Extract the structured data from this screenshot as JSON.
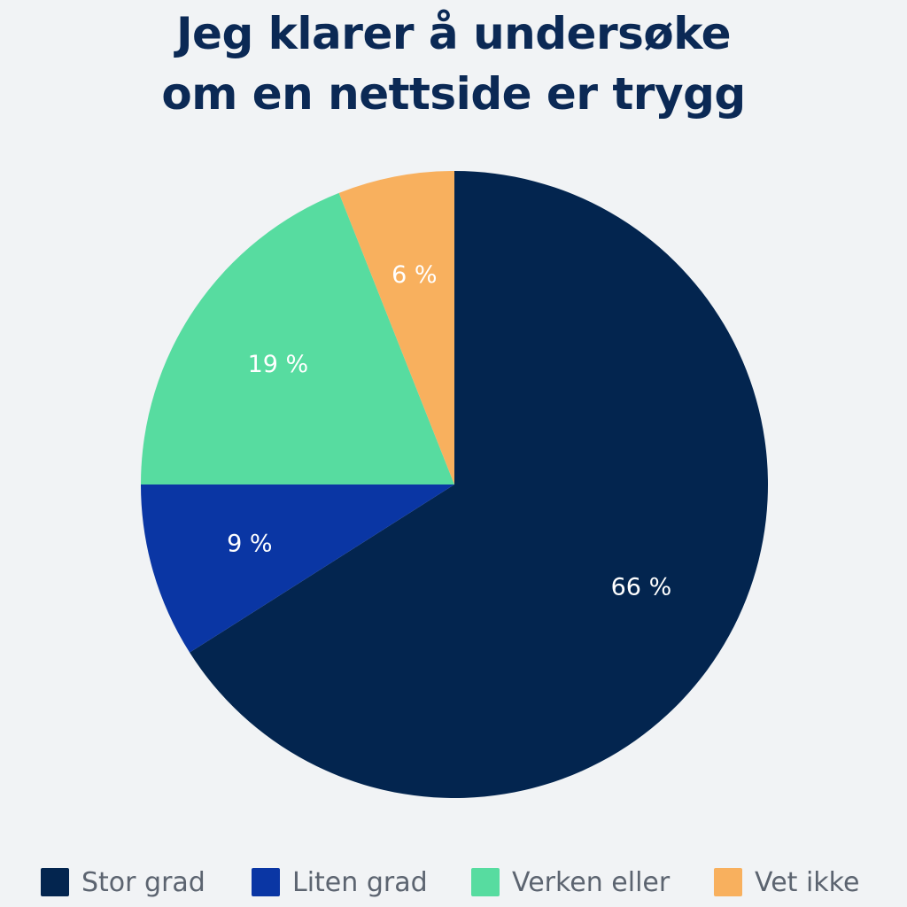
{
  "chart_data": {
    "type": "pie",
    "title_lines": [
      "Jeg klarer å undersøke",
      "om en nettside er trygg"
    ],
    "slices": [
      {
        "name": "Stor grad",
        "value": 66,
        "label": "66 %",
        "color": "#03254f"
      },
      {
        "name": "Liten grad",
        "value": 9,
        "label": "9 %",
        "color": "#0a36a4"
      },
      {
        "name": "Verken eller",
        "value": 19,
        "label": "19 %",
        "color": "#57dca0"
      },
      {
        "name": "Vet ikke",
        "value": 6,
        "label": "6 %",
        "color": "#f8b05e"
      }
    ],
    "direction": "clockwise",
    "start_angle": "top",
    "legend_position": "bottom"
  }
}
